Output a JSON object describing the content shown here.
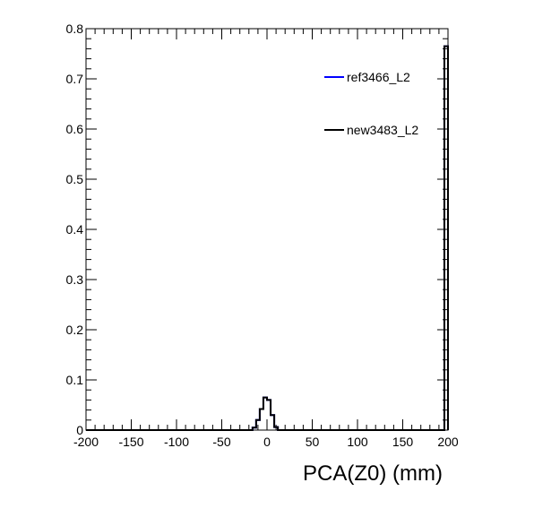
{
  "chart_data": {
    "type": "step",
    "title": "",
    "xlabel": "PCA(Z0) (mm)",
    "ylabel": "",
    "xlim": [
      -200,
      200
    ],
    "ylim": [
      0,
      0.8
    ],
    "x_ticks": [
      -200,
      -150,
      -100,
      -50,
      0,
      50,
      100,
      150,
      200
    ],
    "x_tick_labels": [
      "-200",
      "-150",
      "-100",
      "-50",
      "0",
      "50",
      "100",
      "150",
      "200"
    ],
    "y_ticks": [
      0,
      0.1,
      0.2,
      0.3,
      0.4,
      0.5,
      0.6,
      0.7,
      0.8
    ],
    "y_tick_labels": [
      "0",
      "0.1",
      "0.2",
      "0.3",
      "0.4",
      "0.5",
      "0.6",
      "0.7",
      "0.8"
    ],
    "grid": false,
    "legend_position": "top-right",
    "bin_edges": [
      -200,
      -16,
      -12,
      -8,
      -4,
      0,
      4,
      8,
      12,
      196,
      200
    ],
    "series": [
      {
        "name": "ref3466_L2",
        "color": "#0000ff",
        "values": [
          0,
          0.005,
          0.02,
          0.042,
          0.065,
          0.06,
          0.03,
          0.006,
          0.0,
          0.765
        ]
      },
      {
        "name": "new3483_L2",
        "color": "#000000",
        "values": [
          0,
          0.005,
          0.02,
          0.042,
          0.065,
          0.06,
          0.03,
          0.006,
          0.0,
          0.765
        ]
      }
    ]
  }
}
